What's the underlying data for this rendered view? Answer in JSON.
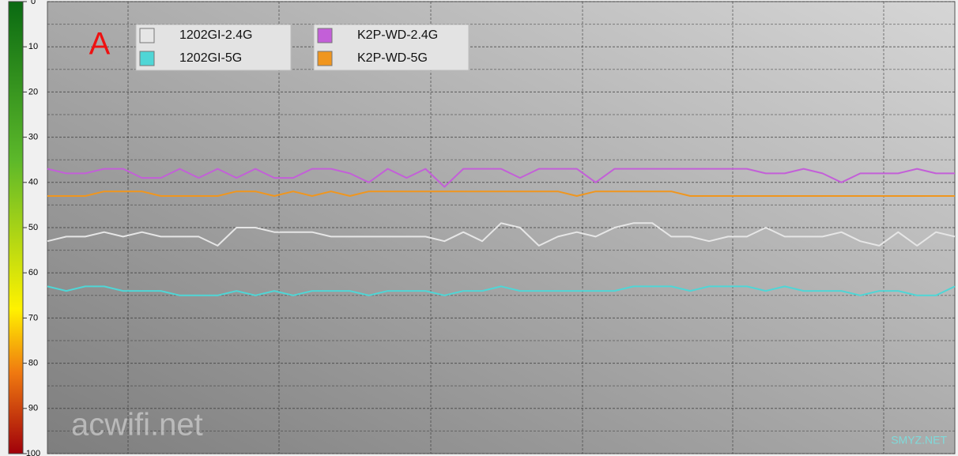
{
  "chart_data": {
    "type": "line",
    "annotation": "A",
    "watermarks": [
      "acwifi.net",
      "SMYZ.NET"
    ],
    "ylim": [
      0,
      100
    ],
    "yticks": [
      0,
      10,
      20,
      30,
      40,
      50,
      60,
      70,
      80,
      90,
      100
    ],
    "y_inverted": true,
    "grid": true,
    "series": [
      {
        "name": "1202GI-2.4G",
        "color": "#e6e6e6",
        "values": [
          53,
          52,
          52,
          51,
          52,
          51,
          52,
          52,
          52,
          54,
          50,
          50,
          51,
          51,
          51,
          52,
          52,
          52,
          52,
          52,
          52,
          53,
          51,
          53,
          49,
          50,
          54,
          52,
          51,
          52,
          50,
          49,
          49,
          52,
          52,
          53,
          52,
          52,
          50,
          52,
          52,
          52,
          51,
          53,
          54,
          51,
          54,
          51,
          52
        ]
      },
      {
        "name": "1202GI-5G",
        "color": "#4fd6d6",
        "values": [
          63,
          64,
          63,
          63,
          64,
          64,
          64,
          65,
          65,
          65,
          64,
          65,
          64,
          65,
          64,
          64,
          64,
          65,
          64,
          64,
          64,
          65,
          64,
          64,
          63,
          64,
          64,
          64,
          64,
          64,
          64,
          63,
          63,
          63,
          64,
          63,
          63,
          63,
          64,
          63,
          64,
          64,
          64,
          65,
          64,
          64,
          65,
          65,
          63
        ]
      },
      {
        "name": "K2P-WD-2.4G",
        "color": "#c35fd8",
        "values": [
          37,
          38,
          38,
          37,
          37,
          39,
          39,
          37,
          39,
          37,
          39,
          37,
          39,
          39,
          37,
          37,
          38,
          40,
          37,
          39,
          37,
          41,
          37,
          37,
          37,
          39,
          37,
          37,
          37,
          40,
          37,
          37,
          37,
          37,
          37,
          37,
          37,
          37,
          38,
          38,
          37,
          38,
          40,
          38,
          38,
          38,
          37,
          38,
          38
        ]
      },
      {
        "name": "K2P-WD-5G",
        "color": "#f0961e",
        "values": [
          43,
          43,
          43,
          42,
          42,
          42,
          43,
          43,
          43,
          43,
          42,
          42,
          43,
          42,
          43,
          42,
          43,
          42,
          42,
          42,
          42,
          42,
          42,
          42,
          42,
          42,
          42,
          42,
          43,
          42,
          42,
          42,
          42,
          42,
          43,
          43,
          43,
          43,
          43,
          43,
          43,
          43,
          43,
          43,
          43,
          43,
          43,
          43,
          43
        ]
      }
    ]
  }
}
